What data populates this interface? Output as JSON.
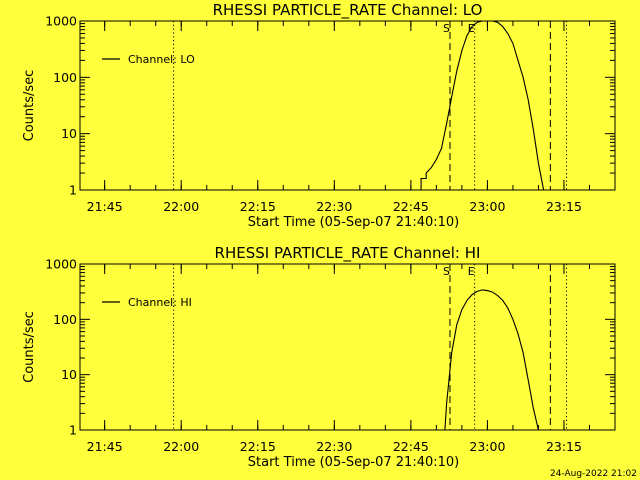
{
  "chart_data": [
    {
      "type": "line",
      "title": "RHESSI PARTICLE_RATE Channel: LO",
      "xlabel": "Start Time (05-Sep-07 21:40:10)",
      "ylabel": "Counts/sec",
      "yscale": "log",
      "ylim": [
        1,
        1000
      ],
      "xlim": [
        "21:40:10",
        "23:25:00"
      ],
      "xticks": [
        "21:45",
        "22:00",
        "22:15",
        "22:30",
        "22:45",
        "23:00",
        "23:15"
      ],
      "yticks": [
        "1",
        "10",
        "100",
        "1000"
      ],
      "grid": false,
      "legend_position": "top-left",
      "series": [
        {
          "name": "Channel: LO",
          "x": [
            "22:46:00",
            "22:47:00",
            "22:47:00",
            "22:48:00",
            "22:48:00",
            "22:49:00",
            "22:50:00",
            "22:51:00",
            "22:52:00",
            "22:53:00",
            "22:54:00",
            "22:55:00",
            "22:56:00",
            "22:57:00",
            "22:58:00",
            "22:59:00",
            "23:00:00",
            "23:01:00",
            "23:02:00",
            "23:03:00",
            "23:04:00",
            "23:05:00",
            "23:06:00",
            "23:07:00",
            "23:08:00",
            "23:09:00",
            "23:10:00",
            "23:11:00"
          ],
          "y": [
            1.0,
            1.0,
            1.6,
            1.6,
            2.0,
            2.5,
            3.5,
            5.5,
            15,
            45,
            130,
            300,
            550,
            800,
            950,
            1000,
            1000,
            1000,
            950,
            800,
            600,
            400,
            200,
            100,
            40,
            12,
            3,
            1.0
          ]
        }
      ],
      "markers": [
        {
          "label": "S",
          "time": "22:52:40",
          "style": "dashed"
        },
        {
          "label": "E",
          "time": "22:57:30",
          "style": "dotted"
        },
        {
          "label": "",
          "time": "23:12:20",
          "style": "dashed"
        },
        {
          "label": "",
          "time": "23:15:30",
          "style": "dotted"
        },
        {
          "label": "",
          "time": "21:58:30",
          "style": "dotted"
        }
      ]
    },
    {
      "type": "line",
      "title": "RHESSI PARTICLE_RATE Channel: HI",
      "xlabel": "Start Time (05-Sep-07 21:40:10)",
      "ylabel": "Counts/sec",
      "yscale": "log",
      "ylim": [
        1,
        1000
      ],
      "xlim": [
        "21:40:10",
        "23:25:00"
      ],
      "xticks": [
        "21:45",
        "22:00",
        "22:15",
        "22:30",
        "22:45",
        "23:00",
        "23:15"
      ],
      "yticks": [
        "1",
        "10",
        "100",
        "1000"
      ],
      "grid": false,
      "legend_position": "top-left",
      "series": [
        {
          "name": "Channel: HI",
          "x": [
            "22:51:40",
            "22:52:00",
            "22:53:00",
            "22:54:00",
            "22:55:00",
            "22:56:00",
            "22:57:00",
            "22:58:00",
            "22:59:00",
            "23:00:00",
            "23:01:00",
            "23:02:00",
            "23:03:00",
            "23:04:00",
            "23:05:00",
            "23:06:00",
            "23:07:00",
            "23:08:00",
            "23:09:00",
            "23:10:00"
          ],
          "y": [
            1.0,
            3,
            25,
            80,
            150,
            220,
            280,
            320,
            340,
            330,
            310,
            270,
            220,
            160,
            100,
            55,
            25,
            8,
            2.5,
            1.0
          ]
        }
      ],
      "markers": [
        {
          "label": "S",
          "time": "22:52:40",
          "style": "dashed"
        },
        {
          "label": "E",
          "time": "22:57:30",
          "style": "dotted"
        },
        {
          "label": "",
          "time": "23:12:20",
          "style": "dashed"
        },
        {
          "label": "",
          "time": "23:15:30",
          "style": "dotted"
        },
        {
          "label": "",
          "time": "21:58:30",
          "style": "dotted"
        }
      ]
    }
  ],
  "footer": {
    "timestamp": "24-Aug-2022 21:02"
  },
  "colors": {
    "background": "#ffff3c",
    "ink": "#000000"
  }
}
